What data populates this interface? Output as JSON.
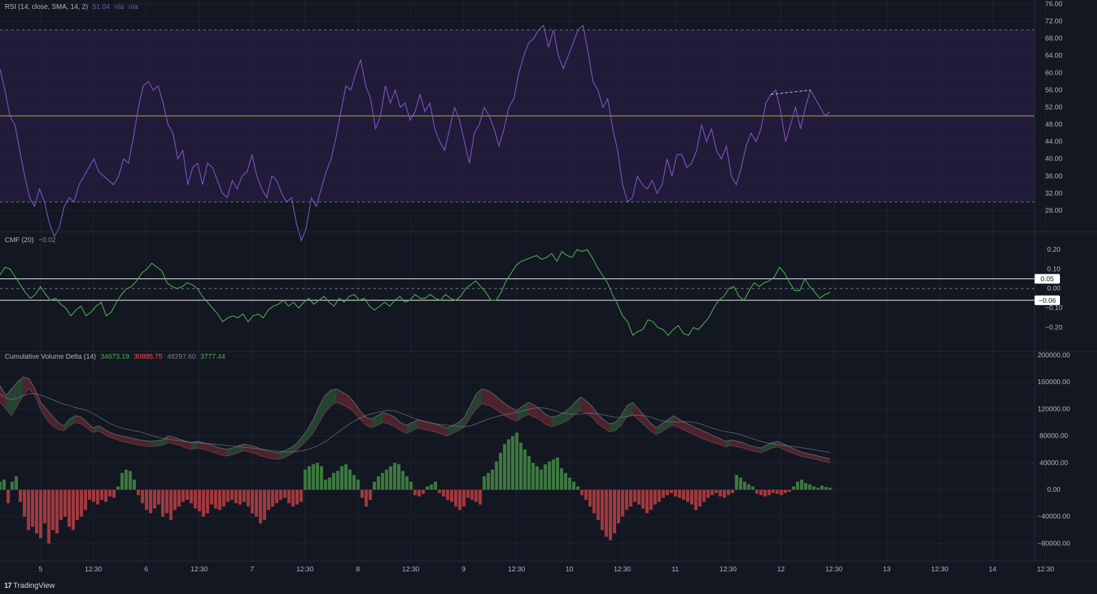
{
  "chart_data": [
    {
      "type": "line",
      "panel": "rsi",
      "legend": {
        "name": "RSI (14, close, SMA, 14, 2)",
        "value": "51.04",
        "na1": "n/a",
        "na2": "n/a"
      },
      "ylim": [
        24,
        76
      ],
      "yticks": [
        "76.00",
        "72.00",
        "68.00",
        "64.00",
        "60.00",
        "56.00",
        "52.00",
        "48.00",
        "44.00",
        "40.00",
        "36.00",
        "32.00",
        "28.00"
      ],
      "bands": [
        30,
        70
      ],
      "midline": 50,
      "colors": {
        "line": "#7e57c2",
        "midline": "#d4b44a",
        "band_fill": "#241c3d",
        "band_line": "#787b86"
      },
      "series": [
        {
          "values": [
            61,
            56,
            50,
            48,
            42,
            36,
            31,
            29,
            33,
            30,
            25,
            22,
            24,
            29,
            31,
            30,
            34,
            36,
            38,
            40,
            37,
            36,
            35,
            34,
            36,
            40,
            39,
            45,
            52,
            57,
            58,
            56,
            57,
            53,
            48,
            46,
            40,
            42,
            34,
            38,
            39,
            34,
            39,
            38,
            35,
            32,
            31,
            35,
            33,
            36,
            37,
            41,
            36,
            33,
            31,
            36,
            35,
            32,
            30,
            31,
            25,
            21,
            24,
            31,
            29,
            33,
            37,
            40,
            45,
            51,
            57,
            56,
            60,
            63,
            57,
            54,
            47,
            50,
            57,
            53,
            56,
            52,
            53,
            49,
            51,
            55,
            51,
            53,
            47,
            44,
            42,
            47,
            52,
            49,
            44,
            39,
            46,
            48,
            52,
            50,
            47,
            43,
            47,
            52,
            54,
            60,
            64,
            67,
            68,
            70,
            71,
            66,
            70,
            64,
            61,
            64,
            67,
            70,
            71,
            65,
            58,
            56,
            52,
            54,
            47,
            42,
            34,
            30,
            31,
            36,
            34,
            33,
            35,
            32,
            34,
            40,
            36,
            41,
            41,
            38,
            39,
            42,
            48,
            44,
            47,
            42,
            40,
            43,
            36,
            34,
            38,
            43,
            46,
            44,
            47,
            53,
            55,
            56,
            51,
            44,
            48,
            52,
            47,
            52,
            56,
            54,
            52,
            50,
            51
          ]
        }
      ]
    },
    {
      "type": "line",
      "panel": "cmf",
      "legend": {
        "name": "CMF (20)",
        "value": "−0.02"
      },
      "ylim": [
        -0.3,
        0.27
      ],
      "yticks": [
        "0.20",
        "0.10",
        "0.00",
        "−0.10",
        "−0.20"
      ],
      "levels": [
        {
          "value": 0.05,
          "label": "0.05"
        },
        {
          "value": -0.06,
          "label": "−0.06"
        }
      ],
      "zero_line": 0,
      "colors": {
        "line": "#4caf50",
        "level_line": "#ffffff",
        "zero": "#787b86"
      },
      "series": [
        {
          "values": [
            0.07,
            0.11,
            0.1,
            0.06,
            0.02,
            -0.02,
            -0.05,
            -0.03,
            0.01,
            -0.03,
            -0.06,
            -0.05,
            -0.08,
            -0.1,
            -0.14,
            -0.11,
            -0.09,
            -0.14,
            -0.12,
            -0.09,
            -0.07,
            -0.14,
            -0.12,
            -0.07,
            -0.03,
            0.0,
            0.01,
            0.04,
            0.08,
            0.1,
            0.13,
            0.11,
            0.09,
            0.03,
            0.01,
            0.0,
            0.01,
            0.03,
            0.02,
            0.0,
            -0.04,
            -0.07,
            -0.1,
            -0.13,
            -0.17,
            -0.15,
            -0.14,
            -0.15,
            -0.13,
            -0.17,
            -0.14,
            -0.13,
            -0.15,
            -0.11,
            -0.09,
            -0.08,
            -0.06,
            -0.09,
            -0.07,
            -0.1,
            -0.07,
            -0.05,
            -0.08,
            -0.06,
            -0.04,
            -0.07,
            -0.09,
            -0.05,
            -0.07,
            -0.04,
            -0.03,
            -0.06,
            -0.05,
            -0.09,
            -0.11,
            -0.09,
            -0.07,
            -0.09,
            -0.06,
            -0.04,
            -0.07,
            -0.06,
            -0.03,
            -0.05,
            -0.05,
            -0.03,
            -0.05,
            -0.06,
            -0.03,
            -0.05,
            -0.06,
            -0.04,
            0.0,
            0.02,
            0.04,
            0.01,
            -0.02,
            -0.06,
            -0.06,
            -0.02,
            0.04,
            0.08,
            0.12,
            0.14,
            0.15,
            0.16,
            0.17,
            0.15,
            0.16,
            0.18,
            0.14,
            0.19,
            0.17,
            0.16,
            0.2,
            0.19,
            0.2,
            0.16,
            0.11,
            0.07,
            0.03,
            -0.03,
            -0.08,
            -0.14,
            -0.17,
            -0.24,
            -0.22,
            -0.21,
            -0.16,
            -0.17,
            -0.2,
            -0.21,
            -0.24,
            -0.21,
            -0.19,
            -0.23,
            -0.24,
            -0.2,
            -0.21,
            -0.18,
            -0.15,
            -0.1,
            -0.06,
            -0.04,
            0.0,
            0.01,
            -0.04,
            -0.06,
            -0.01,
            0.03,
            0.01,
            0.03,
            0.04,
            0.06,
            0.11,
            0.08,
            0.03,
            -0.01,
            -0.01,
            0.05,
            0.01,
            -0.02,
            -0.05,
            -0.03,
            -0.02
          ]
        }
      ]
    },
    {
      "type": "area",
      "panel": "cvd",
      "legend": {
        "name": "Cumulative Volume Delta (14)",
        "v1": "34673.19",
        "v2": "30895.75",
        "v3": "48297.60",
        "v4": "3777.44"
      },
      "ylim": [
        -100000,
        200000
      ],
      "yticks": [
        "200000.00",
        "160000.00",
        "120000.00",
        "80000.00",
        "40000.00",
        "0.00",
        "−40000.00",
        "−80000.00"
      ],
      "colors": {
        "up": "#4caf50",
        "down": "#ef5350",
        "up_fill": "#2a4a33",
        "down_fill": "#5a2630",
        "upper": "#5d6b63",
        "lower": "#6a3c44",
        "ma": "#7a7e89",
        "label_up": "#4caf50",
        "label_down": "#ef5350",
        "label_neutral": "#b2b5be",
        "label_last": "#4caf50"
      },
      "upper": [
        155,
        140,
        150,
        160,
        168,
        165,
        150,
        130,
        120,
        110,
        100,
        95,
        105,
        110,
        108,
        100,
        92,
        95,
        90,
        85,
        82,
        80,
        78,
        76,
        74,
        73,
        72,
        73,
        74,
        80,
        78,
        75,
        72,
        70,
        72,
        70,
        68,
        65,
        62,
        60,
        62,
        65,
        68,
        66,
        64,
        60,
        58,
        56,
        55,
        58,
        62,
        68,
        78,
        90,
        105,
        125,
        140,
        148,
        150,
        145,
        140,
        130,
        118,
        108,
        105,
        110,
        115,
        112,
        108,
        100,
        96,
        100,
        104,
        102,
        100,
        98,
        95,
        92,
        96,
        100,
        108,
        125,
        142,
        150,
        148,
        142,
        135,
        128,
        122,
        118,
        124,
        130,
        126,
        120,
        112,
        108,
        110,
        114,
        120,
        130,
        138,
        132,
        124,
        112,
        104,
        98,
        100,
        110,
        125,
        130,
        120,
        110,
        100,
        92,
        98,
        104,
        110,
        105,
        100,
        96,
        92,
        88,
        84,
        80,
        76,
        72,
        74,
        72,
        70,
        66,
        64,
        62,
        66,
        70,
        72,
        68,
        64,
        60,
        56,
        54,
        52,
        50,
        48,
        46
      ],
      "lower": [
        130,
        120,
        110,
        125,
        140,
        150,
        140,
        120,
        105,
        95,
        90,
        88,
        95,
        100,
        98,
        92,
        85,
        88,
        82,
        78,
        75,
        72,
        70,
        68,
        66,
        65,
        64,
        65,
        66,
        70,
        68,
        66,
        62,
        60,
        62,
        60,
        58,
        55,
        52,
        50,
        52,
        55,
        58,
        56,
        54,
        50,
        48,
        46,
        45,
        48,
        52,
        58,
        66,
        75,
        85,
        100,
        115,
        125,
        130,
        126,
        122,
        115,
        105,
        96,
        92,
        96,
        100,
        98,
        94,
        88,
        84,
        88,
        92,
        90,
        88,
        86,
        83,
        80,
        84,
        88,
        94,
        108,
        120,
        128,
        126,
        122,
        116,
        110,
        105,
        102,
        108,
        112,
        108,
        104,
        97,
        94,
        96,
        100,
        104,
        112,
        118,
        114,
        108,
        98,
        92,
        86,
        88,
        96,
        108,
        112,
        104,
        96,
        88,
        82,
        86,
        92,
        96,
        92,
        88,
        84,
        80,
        76,
        73,
        70,
        67,
        64,
        66,
        64,
        62,
        59,
        57,
        55,
        58,
        62,
        64,
        60,
        56,
        53,
        50,
        48,
        46,
        44,
        42,
        40
      ],
      "bars": [
        12,
        15,
        -20,
        12,
        20,
        -18,
        -40,
        -60,
        -55,
        -65,
        -72,
        -50,
        -80,
        -60,
        -65,
        -45,
        -40,
        -55,
        -60,
        -45,
        -40,
        -30,
        -15,
        -18,
        -22,
        -15,
        -18,
        -10,
        -12,
        5,
        25,
        30,
        28,
        15,
        -8,
        -20,
        -30,
        -35,
        -28,
        -22,
        -40,
        -35,
        -45,
        -30,
        -25,
        -18,
        -15,
        -20,
        -28,
        -32,
        -40,
        -35,
        -22,
        -28,
        -30,
        -25,
        -18,
        -15,
        -20,
        -22,
        -18,
        -25,
        -35,
        -40,
        -50,
        -45,
        -30,
        -25,
        -20,
        -15,
        -12,
        -20,
        -25,
        -22,
        -18,
        30,
        35,
        38,
        40,
        35,
        15,
        18,
        25,
        28,
        35,
        38,
        30,
        22,
        15,
        -12,
        -25,
        -15,
        12,
        20,
        25,
        30,
        35,
        40,
        38,
        28,
        20,
        12,
        -8,
        -10,
        -6,
        5,
        8,
        12,
        -5,
        -10,
        -15,
        -18,
        -25,
        -30,
        -25,
        -12,
        -15,
        -18,
        -22,
        20,
        25,
        30,
        42,
        55,
        68,
        75,
        80,
        85,
        70,
        60,
        50,
        40,
        35,
        30,
        38,
        42,
        45,
        48,
        32,
        25,
        18,
        12,
        5,
        -8,
        -15,
        -25,
        -35,
        -45,
        -60,
        -70,
        -75,
        -65,
        -50,
        -40,
        -30,
        -25,
        -18,
        -22,
        -28,
        -35,
        -30,
        -22,
        -18,
        -12,
        -8,
        -5,
        -10,
        -12,
        -15,
        -18,
        -22,
        -30,
        -25,
        -18,
        -12,
        -8,
        -5,
        -10,
        -12,
        -8,
        -5,
        22,
        18,
        12,
        8,
        5,
        -6,
        -8,
        -10,
        -8,
        -5,
        -6,
        -8,
        -5,
        -3,
        5,
        12,
        15,
        10,
        8,
        5,
        3,
        6,
        4,
        3
      ]
    }
  ],
  "time_axis": {
    "ticks": [
      "5",
      "12:30",
      "6",
      "12:30",
      "7",
      "12:30",
      "8",
      "12:30",
      "9",
      "12:30",
      "10",
      "12:30",
      "11",
      "12:30",
      "12",
      "12:30",
      "13",
      "12:30",
      "14",
      "12:30"
    ]
  },
  "brand": {
    "label": "TradingView",
    "mark": "17"
  }
}
